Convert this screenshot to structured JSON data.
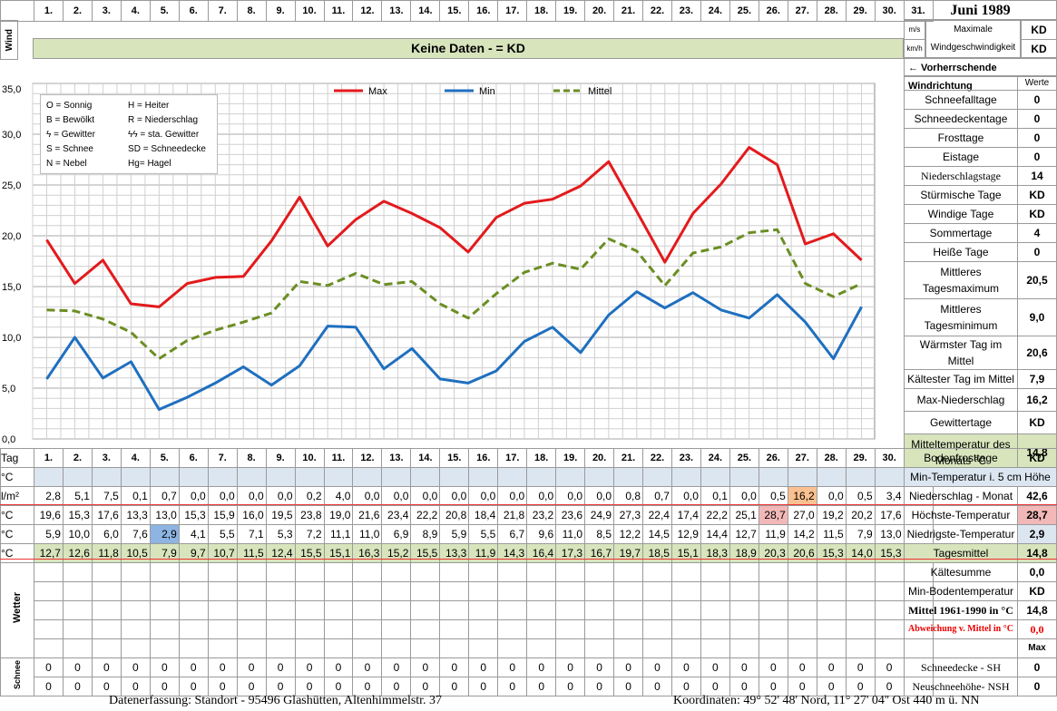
{
  "title": "Juni 1989",
  "wind": {
    "label": "Wind",
    "message": "Keine Daten -  = KD",
    "unit_ms": "m/s",
    "unit_kmh": "km/h",
    "max_label": "Maximale Windgeschwindigkeit",
    "max_ms": "KD",
    "max_kmh": "KD",
    "direction_label": "← Vorherrschende Windrichtung"
  },
  "days": [
    "1.",
    "2.",
    "3.",
    "4.",
    "5.",
    "6.",
    "7.",
    "8.",
    "9.",
    "10.",
    "11.",
    "12.",
    "13.",
    "14.",
    "15.",
    "16.",
    "17.",
    "18.",
    "19.",
    "20.",
    "21.",
    "22.",
    "23.",
    "24.",
    "25.",
    "26.",
    "27.",
    "28.",
    "29.",
    "30.",
    "31."
  ],
  "legend_box": [
    [
      "O = Sonnig",
      "H = Heiter"
    ],
    [
      "B = Bewölkt",
      "R = Niederschlag"
    ],
    [
      "ϟ = Gewitter",
      "ϟϟ = sta. Gewitter"
    ],
    [
      "S = Schnee",
      "SD = Schneedecke"
    ],
    [
      "N = Nebel",
      "Hg= Hagel"
    ]
  ],
  "chart_data": {
    "type": "line",
    "x": [
      "1.",
      "2.",
      "3.",
      "4.",
      "5.",
      "6.",
      "7.",
      "8.",
      "9.",
      "10.",
      "11.",
      "12.",
      "13.",
      "14.",
      "15.",
      "16.",
      "17.",
      "18.",
      "19.",
      "20.",
      "21.",
      "22.",
      "23.",
      "24.",
      "25.",
      "26.",
      "27.",
      "28.",
      "29.",
      "30."
    ],
    "ylim": [
      0,
      35
    ],
    "yticks": [
      "0,0",
      "5,0",
      "10,0",
      "15,0",
      "20,0",
      "25,0",
      "30,0",
      "35,0"
    ],
    "grid": true,
    "legend_position": "top",
    "series": [
      {
        "name": "Max",
        "color": "#e31a1c",
        "values": [
          19.6,
          15.3,
          17.6,
          13.3,
          13.0,
          15.3,
          15.9,
          16.0,
          19.5,
          23.8,
          19.0,
          21.6,
          23.4,
          22.2,
          20.8,
          18.4,
          21.8,
          23.2,
          23.6,
          24.9,
          27.3,
          22.4,
          17.4,
          22.2,
          25.1,
          28.7,
          27.0,
          19.2,
          20.2,
          17.6
        ]
      },
      {
        "name": "Min",
        "color": "#1f6fbf",
        "values": [
          5.9,
          10.0,
          6.0,
          7.6,
          2.9,
          4.1,
          5.5,
          7.1,
          5.3,
          7.2,
          11.1,
          11.0,
          6.9,
          8.9,
          5.9,
          5.5,
          6.7,
          9.6,
          11.0,
          8.5,
          12.2,
          14.5,
          12.9,
          14.4,
          12.7,
          11.9,
          14.2,
          11.5,
          7.9,
          13.0
        ]
      },
      {
        "name": "Mittel",
        "color": "#6b8e23",
        "values": [
          12.7,
          12.6,
          11.8,
          10.5,
          7.9,
          9.7,
          10.7,
          11.5,
          12.4,
          15.5,
          15.1,
          16.3,
          15.2,
          15.5,
          13.3,
          11.9,
          14.3,
          16.4,
          17.3,
          16.7,
          19.7,
          18.5,
          15.1,
          18.3,
          18.9,
          20.3,
          20.6,
          15.3,
          14.0,
          15.3
        ]
      }
    ]
  },
  "table": {
    "tag_label": "Tag",
    "rows": [
      {
        "unit": "°C",
        "style": "blue",
        "values": [
          "",
          "",
          "",
          "",
          "",
          "",
          "",
          "",
          "",
          "",
          "",
          "",
          "",
          "",
          "",
          "",
          "",
          "",
          "",
          "",
          "",
          "",
          "",
          "",
          "",
          "",
          "",
          "",
          "",
          "",
          ""
        ]
      },
      {
        "unit": "l/m²",
        "style": "",
        "values": [
          "2,8",
          "5,1",
          "7,5",
          "0,1",
          "0,7",
          "0,0",
          "0,0",
          "0,0",
          "0,0",
          "0,2",
          "4,0",
          "0,0",
          "0,0",
          "0,0",
          "0,0",
          "0,0",
          "0,0",
          "0,0",
          "0,0",
          "0,0",
          "0,8",
          "0,7",
          "0,0",
          "0,1",
          "0,0",
          "0,5",
          "16,2",
          "0,0",
          "0,5",
          "3,4",
          ""
        ]
      },
      {
        "unit": "°C",
        "style": "",
        "values": [
          "19,6",
          "15,3",
          "17,6",
          "13,3",
          "13,0",
          "15,3",
          "15,9",
          "16,0",
          "19,5",
          "23,8",
          "19,0",
          "21,6",
          "23,4",
          "22,2",
          "20,8",
          "18,4",
          "21,8",
          "23,2",
          "23,6",
          "24,9",
          "27,3",
          "22,4",
          "17,4",
          "22,2",
          "25,1",
          "28,7",
          "27,0",
          "19,2",
          "20,2",
          "17,6",
          ""
        ]
      },
      {
        "unit": "°C",
        "style": "",
        "values": [
          "5,9",
          "10,0",
          "6,0",
          "7,6",
          "2,9",
          "4,1",
          "5,5",
          "7,1",
          "5,3",
          "7,2",
          "11,1",
          "11,0",
          "6,9",
          "8,9",
          "5,9",
          "5,5",
          "6,7",
          "9,6",
          "11,0",
          "8,5",
          "12,2",
          "14,5",
          "12,9",
          "14,4",
          "12,7",
          "11,9",
          "14,2",
          "11,5",
          "7,9",
          "13,0",
          ""
        ]
      },
      {
        "unit": "°C",
        "style": "green",
        "values": [
          "12,7",
          "12,6",
          "11,8",
          "10,5",
          "7,9",
          "9,7",
          "10,7",
          "11,5",
          "12,4",
          "15,5",
          "15,1",
          "16,3",
          "15,2",
          "15,5",
          "13,3",
          "11,9",
          "14,3",
          "16,4",
          "17,3",
          "16,7",
          "19,7",
          "18,5",
          "15,1",
          "18,3",
          "18,9",
          "20,3",
          "20,6",
          "15,3",
          "14,0",
          "15,3",
          ""
        ]
      }
    ],
    "wetter_label": "Wetter",
    "schnee_label": "Schnee",
    "schnee_rows": [
      [
        "0",
        "0",
        "0",
        "0",
        "0",
        "0",
        "0",
        "0",
        "0",
        "0",
        "0",
        "0",
        "0",
        "0",
        "0",
        "0",
        "0",
        "0",
        "0",
        "0",
        "0",
        "0",
        "0",
        "0",
        "0",
        "0",
        "0",
        "0",
        "0",
        "0",
        ""
      ],
      [
        "0",
        "0",
        "0",
        "0",
        "0",
        "0",
        "0",
        "0",
        "0",
        "0",
        "0",
        "0",
        "0",
        "0",
        "0",
        "0",
        "0",
        "0",
        "0",
        "0",
        "0",
        "0",
        "0",
        "0",
        "0",
        "0",
        "0",
        "0",
        "0",
        "0",
        ""
      ]
    ]
  },
  "sidebar": {
    "werte_label": "Werte",
    "stats": [
      {
        "label": "Schneefalltage",
        "value": "0"
      },
      {
        "label": "Schneedeckentage",
        "value": "0"
      },
      {
        "label": "Frosttage",
        "value": "0"
      },
      {
        "label": "Eistage",
        "value": "0"
      },
      {
        "label": "Niederschlagstage",
        "value": "14"
      },
      {
        "label": "Stürmische Tage",
        "value": "KD"
      },
      {
        "label": "Windige Tage",
        "value": "KD"
      },
      {
        "label": "Sommertage",
        "value": "4"
      },
      {
        "label": "Heiße Tage",
        "value": "0"
      },
      {
        "label": "Mittleres Tagesmaximum",
        "value": "20,5"
      },
      {
        "label": "Mittleres Tagesminimum",
        "value": "9,0"
      },
      {
        "label": "Wärmster Tag im Mittel",
        "value": "20,6"
      },
      {
        "label": "Kältester Tag im Mittel",
        "value": "7,9"
      },
      {
        "label": "Max-Niederschlag",
        "value": "16,2"
      },
      {
        "label": "Gewittertage",
        "value": "KD"
      },
      {
        "label": "Mitteltemperatur des Monats °C",
        "value": "14,8"
      }
    ],
    "bottom": [
      {
        "label": "Bodenfrosttage",
        "value": "KD"
      },
      {
        "label": "Min-Temperatur i. 5 cm Höhe",
        "value": ""
      },
      {
        "label": "Niederschlag - Monat",
        "value": "42,6"
      },
      {
        "label": "Höchste-Temperatur",
        "value": "28,7"
      },
      {
        "label": "Niedrigste-Temperatur",
        "value": "2,9"
      },
      {
        "label": "Tagesmittel",
        "value": "14,8"
      },
      {
        "label": "Kältesumme",
        "value": "0,0"
      },
      {
        "label": "Min-Bodentemperatur",
        "value": "KD"
      },
      {
        "label": "Mittel 1961-1990 in °C",
        "value": "14,8"
      },
      {
        "label": "Abweichung v. Mittel in °C",
        "value": "0,0"
      },
      {
        "label": "",
        "value": "Max"
      },
      {
        "label": "Schneedecke -   SH",
        "value": "0"
      },
      {
        "label": "Neuschneehöhe- NSH",
        "value": "0"
      }
    ]
  },
  "footer": {
    "left": "Datenerfassung:  Standort -   95496  Glashütten, Altenhimmelstr. 37",
    "right": "Koordinaten:  49° 52' 48' Nord,   11° 27' 04'' Ost   440 m ü. NN"
  }
}
